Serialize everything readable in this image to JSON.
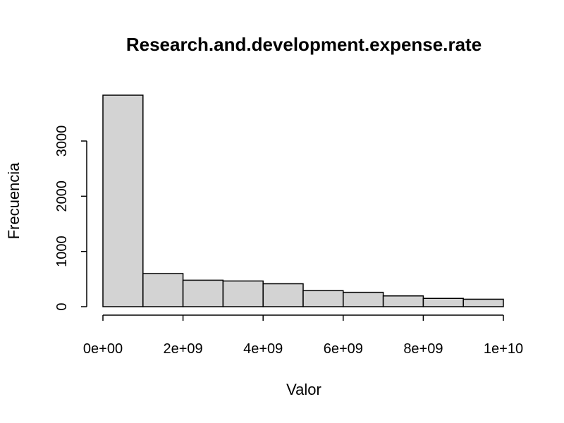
{
  "chart_data": {
    "type": "bar",
    "title": "Research.and.development.expense.rate",
    "xlabel": "Valor",
    "ylabel": "Frecuencia",
    "bins": [
      [
        0,
        1000000000
      ],
      [
        1000000000,
        2000000000
      ],
      [
        2000000000,
        3000000000
      ],
      [
        3000000000,
        4000000000
      ],
      [
        4000000000,
        5000000000
      ],
      [
        5000000000,
        6000000000
      ],
      [
        6000000000,
        7000000000
      ],
      [
        7000000000,
        8000000000
      ],
      [
        8000000000,
        9000000000
      ],
      [
        9000000000,
        10000000000
      ]
    ],
    "values": [
      3830,
      600,
      480,
      465,
      415,
      290,
      260,
      195,
      150,
      135
    ],
    "xlim": [
      0,
      10000000000
    ],
    "ylim": [
      0,
      3830
    ],
    "x_ticks": [
      0,
      2000000000,
      4000000000,
      6000000000,
      8000000000,
      10000000000
    ],
    "x_tick_labels": [
      "0e+00",
      "2e+09",
      "4e+09",
      "6e+09",
      "8e+09",
      "1e+10"
    ],
    "y_ticks": [
      0,
      1000,
      2000,
      3000
    ],
    "y_tick_labels": [
      "0",
      "1000",
      "2000",
      "3000"
    ],
    "bar_color": "#d3d3d3",
    "edge_color": "#000000",
    "grid": false,
    "legend": "none"
  }
}
